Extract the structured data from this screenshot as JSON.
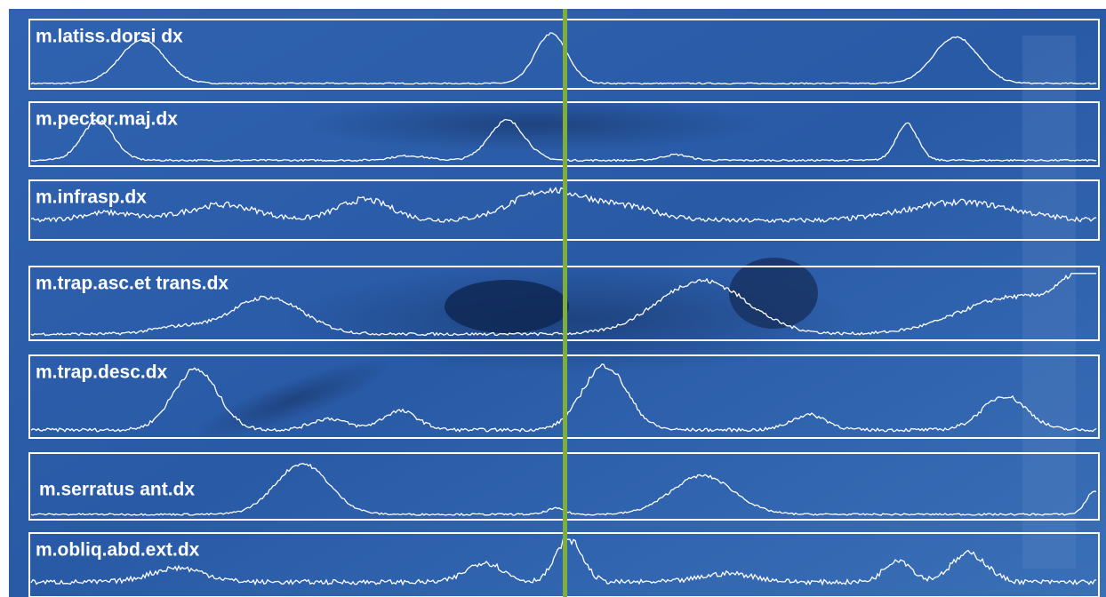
{
  "panels": [
    {
      "label": "m.latiss.dorsi dx"
    },
    {
      "label": "m.pector.maj.dx"
    },
    {
      "label": "m.infrasp.dx"
    },
    {
      "label": "m.trap.asc.et trans.dx"
    },
    {
      "label": "m.trap.desc.dx"
    },
    {
      "label": "m.serratus ant.dx"
    },
    {
      "label": "m.obliq.abd.ext.dx"
    }
  ]
}
